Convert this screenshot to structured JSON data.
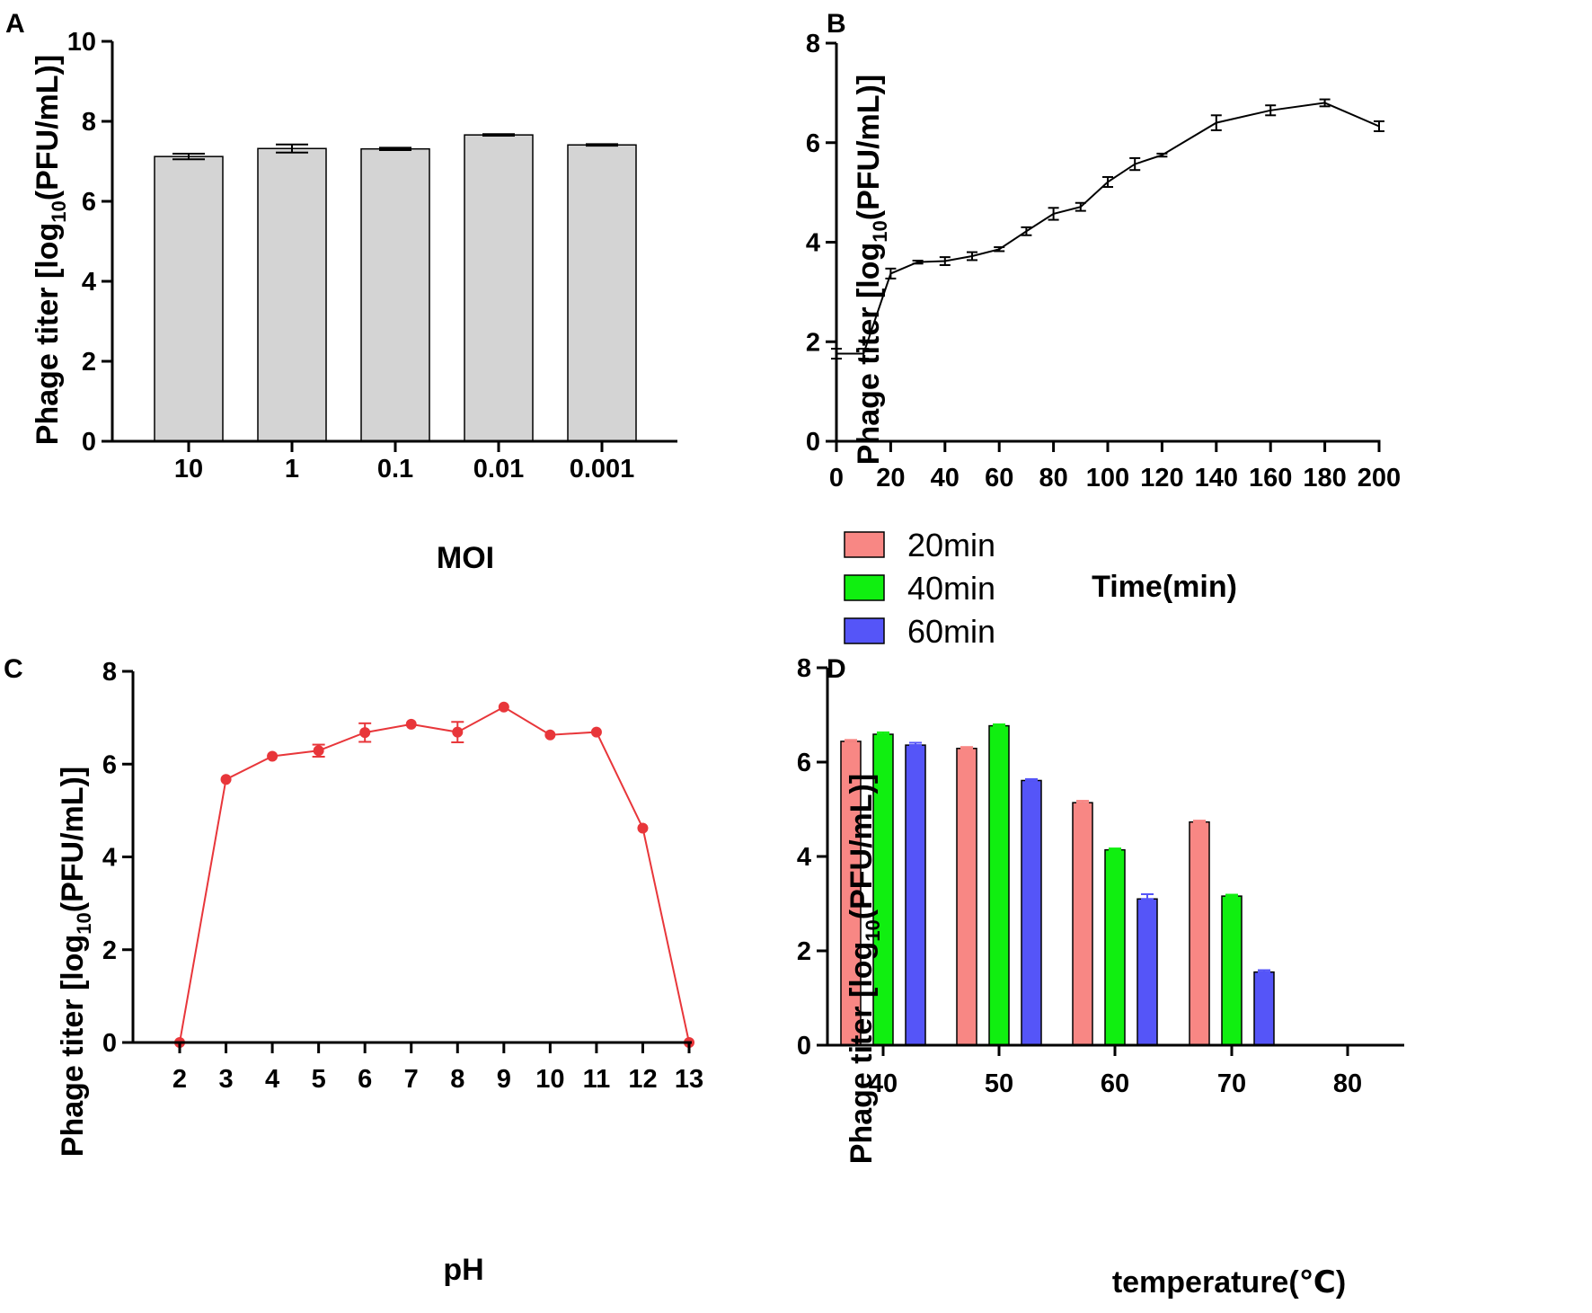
{
  "chart_data": [
    {
      "panel": "A",
      "type": "bar",
      "xlabel": "MOI",
      "ylabel": "Phage titer [log10(PFU/mL)]",
      "ylim": [
        0,
        10
      ],
      "yticks": [
        0,
        2,
        4,
        6,
        8,
        10
      ],
      "categories": [
        "10",
        "1",
        "0.1",
        "0.01",
        "0.001"
      ],
      "values": [
        7.12,
        7.32,
        7.31,
        7.66,
        7.41
      ],
      "errors": [
        0.07,
        0.1,
        0.03,
        0.02,
        0.02
      ],
      "bar_color": "#d4d4d4"
    },
    {
      "panel": "B",
      "type": "line",
      "xlabel": "Time(min)",
      "ylabel": "Phage titer [log10(PFU/mL)]",
      "xlim": [
        0,
        200
      ],
      "ylim": [
        0,
        8
      ],
      "xticks": [
        0,
        20,
        40,
        60,
        80,
        100,
        120,
        140,
        160,
        180,
        200
      ],
      "yticks": [
        0,
        2,
        4,
        6,
        8
      ],
      "x": [
        0,
        10,
        20,
        30,
        40,
        50,
        60,
        70,
        80,
        90,
        100,
        110,
        120,
        140,
        160,
        180,
        200
      ],
      "y": [
        1.76,
        1.76,
        3.37,
        3.6,
        3.62,
        3.72,
        3.86,
        4.22,
        4.57,
        4.71,
        5.21,
        5.57,
        5.75,
        6.4,
        6.65,
        6.8,
        6.33
      ],
      "errors": [
        0.1,
        0.1,
        0.1,
        0.03,
        0.08,
        0.08,
        0.04,
        0.08,
        0.12,
        0.08,
        0.1,
        0.12,
        0.03,
        0.15,
        0.1,
        0.07,
        0.1
      ],
      "color": "#000000"
    },
    {
      "panel": "C",
      "type": "line",
      "xlabel": "pH",
      "ylabel": "Phage titer [log10(PFU/mL)]",
      "ylim": [
        0,
        8
      ],
      "xticks": [
        2,
        3,
        4,
        5,
        6,
        7,
        8,
        9,
        10,
        11,
        12,
        13
      ],
      "yticks": [
        0,
        2,
        4,
        6,
        8
      ],
      "x": [
        2,
        3,
        4,
        5,
        6,
        7,
        8,
        9,
        10,
        11,
        12,
        13
      ],
      "y": [
        0,
        5.67,
        6.17,
        6.29,
        6.68,
        6.86,
        6.69,
        7.23,
        6.63,
        6.69,
        4.62,
        0
      ],
      "errors": [
        0,
        0,
        0,
        0.13,
        0.2,
        0,
        0.22,
        0,
        0,
        0,
        0,
        0
      ],
      "color": "#e8363a"
    },
    {
      "panel": "D",
      "type": "bar",
      "xlabel": "temperature(℃)",
      "ylabel": "Phage titer [log10(PFU/mL)]",
      "ylim": [
        0,
        8
      ],
      "yticks": [
        0,
        2,
        4,
        6,
        8
      ],
      "categories": [
        "40",
        "50",
        "60",
        "70",
        "80"
      ],
      "legend": "top-left, above plot",
      "series": [
        {
          "name": "20min",
          "color": "#f88784",
          "values": [
            6.44,
            6.29,
            5.14,
            4.73,
            null
          ],
          "errors": [
            0.03,
            0.03,
            0.04,
            0.03,
            null
          ]
        },
        {
          "name": "40min",
          "color": "#10ef10",
          "values": [
            6.59,
            6.77,
            4.14,
            3.16,
            null
          ],
          "errors": [
            0.04,
            0.03,
            0.03,
            0.03,
            null
          ]
        },
        {
          "name": "60min",
          "color": "#5555f8",
          "values": [
            6.36,
            5.61,
            3.1,
            1.55,
            null
          ],
          "errors": [
            0.05,
            0.03,
            0.1,
            0.04,
            null
          ]
        }
      ]
    }
  ]
}
